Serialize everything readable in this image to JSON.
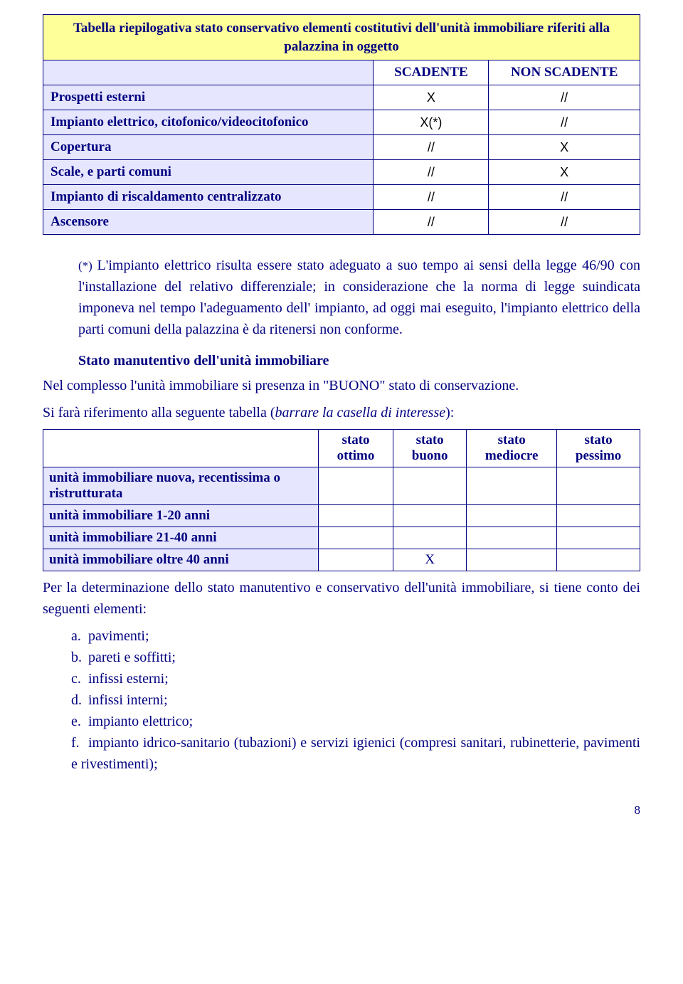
{
  "table1": {
    "title": "Tabella riepilogativa stato conservativo elementi costitutivi dell'unità immobiliare riferiti alla palazzina in oggetto",
    "col_scadente": "SCADENTE",
    "col_nonscadente": "NON SCADENTE",
    "colors": {
      "title_bg": "#ffff99",
      "label_bg": "#e6e6ff",
      "border": "#000080",
      "text": "#000080"
    },
    "rows": [
      {
        "label": "Prospetti esterni",
        "scad": "X",
        "nonscad": "//"
      },
      {
        "label": "Impianto elettrico, citofonico/videocitofonico",
        "scad": "X(*)",
        "nonscad": "//"
      },
      {
        "label": "Copertura",
        "scad": "//",
        "nonscad": "X"
      },
      {
        "label": "Scale, e parti comuni",
        "scad": "//",
        "nonscad": "X"
      },
      {
        "label": "Impianto di riscaldamento centralizzato",
        "scad": "//",
        "nonscad": "//"
      },
      {
        "label": "Ascensore",
        "scad": "//",
        "nonscad": "//"
      }
    ]
  },
  "note": {
    "lead": "(*) ",
    "text": "L'impianto elettrico  risulta essere stato adeguato a suo tempo ai sensi della legge 46/90 con l'installazione del relativo differenziale;  in considerazione che la norma di legge suindicata  imponeva nel tempo l'adeguamento dell' impianto, ad oggi mai eseguito, l'impianto elettrico della parti comuni della palazzina è da ritenersi non conforme."
  },
  "section_heading": "Stato manutentivo dell'unità immobiliare",
  "para1": "Nel complesso l'unità immobiliare si presenza in \"BUONO\" stato di conservazione.",
  "para2_a": "Si farà riferimento alla seguente tabella (",
  "para2_b": "barrare la casella di interesse",
  "para2_c": "):",
  "table2": {
    "colors": {
      "header_bg": "#ffffff",
      "label_bg": "#e6e6ff",
      "border": "#000080"
    },
    "cols": [
      "stato ottimo",
      "stato buono",
      "stato mediocre",
      "stato pessimo"
    ],
    "rows": [
      {
        "label": "unità immobiliare nuova, recentissima o ristrutturata",
        "vals": [
          "",
          "",
          "",
          ""
        ]
      },
      {
        "label": "unità immobiliare 1-20 anni",
        "vals": [
          "",
          "",
          "",
          ""
        ]
      },
      {
        "label": "unità immobiliare 21-40 anni",
        "vals": [
          "",
          "",
          "",
          ""
        ]
      },
      {
        "label": "unità immobiliare oltre 40 anni",
        "vals": [
          "",
          "X",
          "",
          ""
        ]
      }
    ]
  },
  "para3": "Per la determinazione dello stato manutentivo e conservativo dell'unità immobiliare, si tiene conto dei seguenti elementi:",
  "list": [
    {
      "m": "a.",
      "t": "pavimenti;"
    },
    {
      "m": "b.",
      "t": "pareti e soffitti;"
    },
    {
      "m": "c.",
      "t": "infissi esterni;"
    },
    {
      "m": "d.",
      "t": "infissi interni;"
    },
    {
      "m": "e.",
      "t": "impianto elettrico;"
    },
    {
      "m": "f.",
      "t": "impianto idrico-sanitario (tubazioni) e servizi igienici (compresi sanitari, rubinetterie, pavimenti e rivestimenti);"
    }
  ],
  "pagenum": "8"
}
